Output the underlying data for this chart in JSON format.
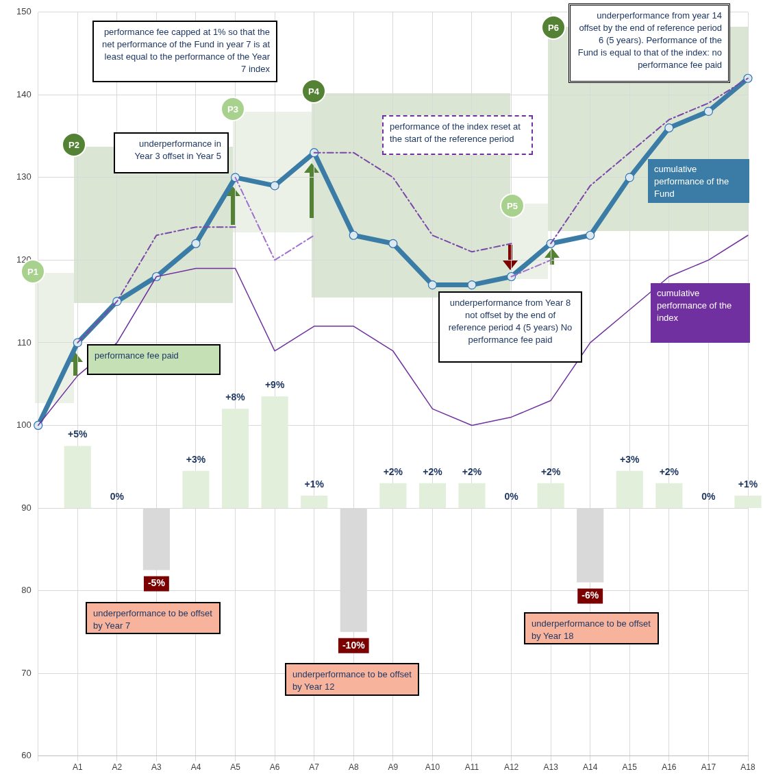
{
  "chart_data": {
    "type": "line",
    "categories": [
      null,
      "A1",
      "A2",
      "A3",
      "A4",
      "A5",
      "A6",
      "A7",
      "A8",
      "A9",
      "A10",
      "A11",
      "A12",
      "A13",
      "A14",
      "A15",
      "A16",
      "A17",
      "A18"
    ],
    "ylim": [
      60,
      150
    ],
    "yticks": [
      60,
      70,
      80,
      90,
      100,
      110,
      120,
      130,
      140,
      150
    ],
    "y2lim": [
      -20,
      40
    ],
    "grid": true,
    "legend": false,
    "series": [
      {
        "type": "bar",
        "axis": "y2",
        "values": [
          null,
          5,
          0,
          -5,
          3,
          8,
          9,
          1,
          -10,
          2,
          2,
          2,
          0,
          2,
          -6,
          3,
          2,
          0,
          1
        ],
        "value_labels": [
          null,
          "+5%",
          "0%",
          "-5%",
          "+3%",
          "+8%",
          "+9%",
          "+1%",
          "-10%",
          "+2%",
          "+2%",
          "+2%",
          "0%",
          "+2%",
          "-6%",
          "+3%",
          "+2%",
          "0%",
          "+1%"
        ],
        "colors": [
          "#e2efda",
          "#e2efda",
          "#e2efda",
          "#d9d9d9",
          "#e2efda",
          "#e2efda",
          "#e2efda",
          "#e2efda",
          "#d9d9d9",
          "#e2efda",
          "#e2efda",
          "#e2efda",
          "#e2efda",
          "#e2efda",
          "#d9d9d9",
          "#e2efda",
          "#e2efda",
          "#e2efda",
          "#e2efda"
        ]
      },
      {
        "name": "cumulative performance of the index",
        "color": "#7030a0",
        "values": [
          100,
          106,
          110,
          118,
          119,
          119,
          109,
          112,
          112,
          109,
          102,
          100,
          101,
          103,
          110,
          114,
          118,
          120,
          123
        ]
      },
      {
        "color": "#a070d0",
        "line_style": "dashed",
        "values": [
          null,
          null,
          null,
          null,
          null,
          130,
          120,
          123,
          null,
          null,
          null,
          null,
          118,
          120,
          null,
          null,
          null,
          null,
          null
        ]
      },
      {
        "color": "#7a48a8",
        "line_style": "dashed",
        "values": [
          null,
          110,
          115,
          123,
          124,
          124,
          null,
          null,
          null,
          null,
          null,
          null,
          null,
          122,
          129,
          133,
          137,
          139,
          142
        ]
      },
      {
        "color": "#7a48a8",
        "line_style": "dashed",
        "values": [
          null,
          null,
          null,
          null,
          null,
          null,
          null,
          133,
          133,
          130,
          123,
          121,
          122,
          null,
          null,
          null,
          null,
          null,
          null
        ]
      },
      {
        "name": "cumulative performance of the Fund",
        "color": "#3a7ca5",
        "marker": "circle",
        "values": [
          100,
          110,
          115,
          118,
          122,
          130,
          129,
          133,
          123,
          122,
          117,
          117,
          118,
          122,
          123,
          130,
          136,
          138,
          142
        ]
      }
    ],
    "annotations": [
      "performance fee capped at 1% so that the net performance of the Fund in year 7 is at least equal to the performance of the Year 7 index",
      "underperformance in Year 3 offset in Year 5",
      "performance of the index reset at the start of the reference period",
      "underperformance from year 14 offset by the end of reference period 6 (5 years). Performance of the Fund is equal to that of the index: no performance fee paid",
      "underperformance from Year 8 not offset by the end of reference period 4 (5 years) No performance fee paid",
      "performance fee paid",
      "underperformance to be offset by Year 7",
      "underperformance to be offset by Year 12",
      "underperformance to be offset by Year 18",
      "P1",
      "P2",
      "P3",
      "P4",
      "P5",
      "P6"
    ]
  }
}
